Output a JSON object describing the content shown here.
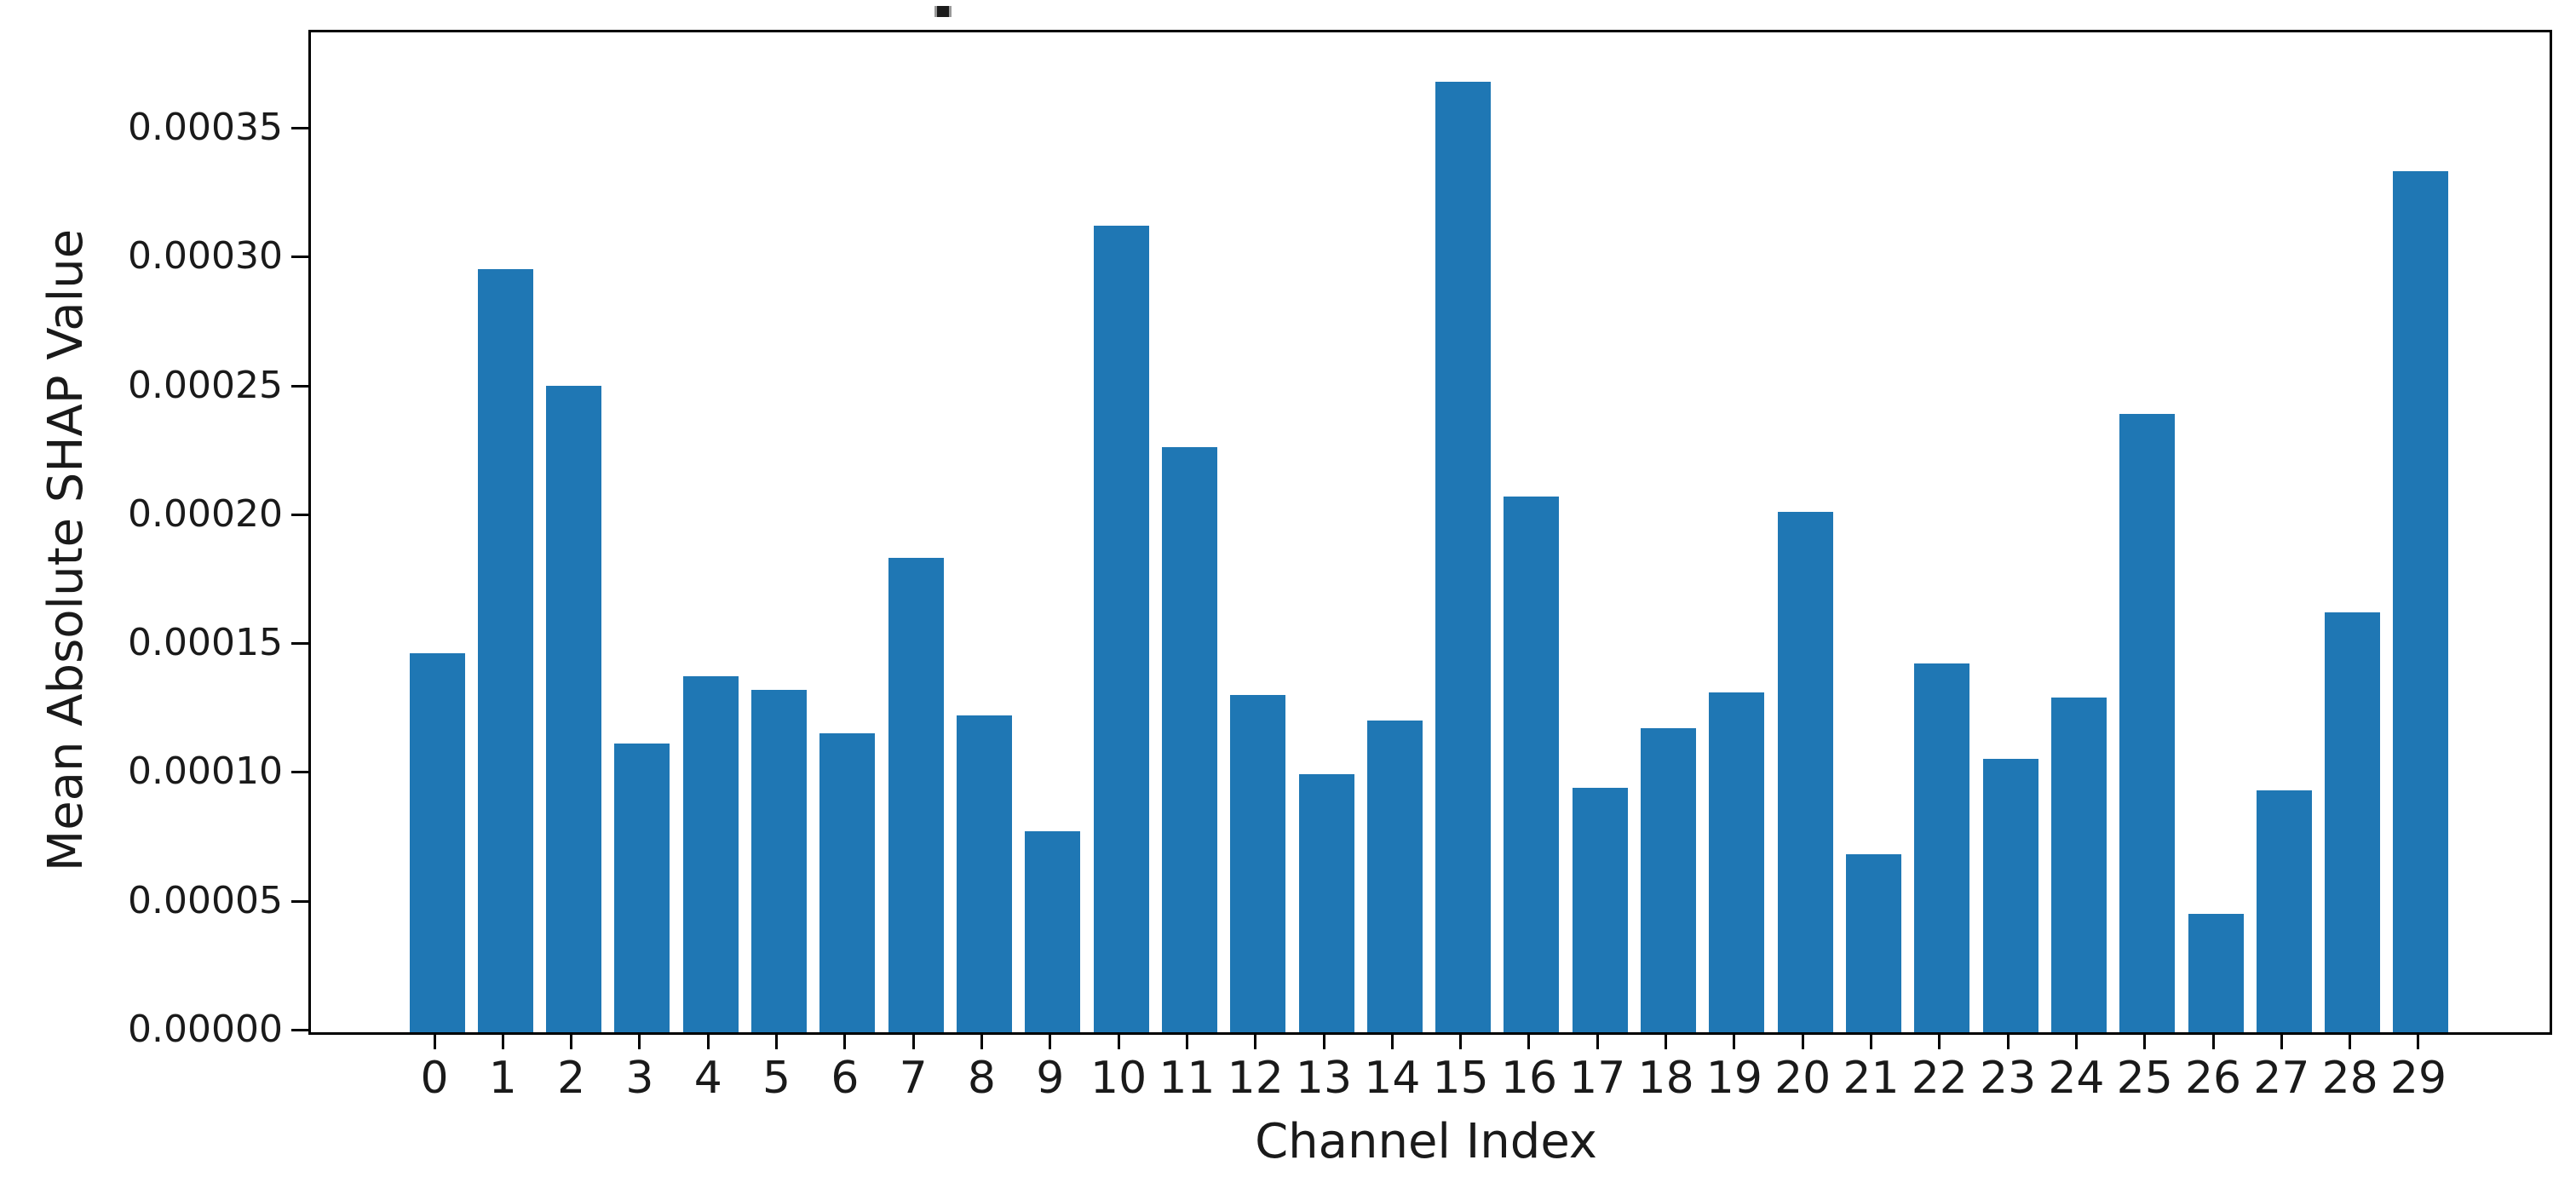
{
  "title": ".",
  "chart_data": {
    "type": "bar",
    "title": ".",
    "xlabel": "Channel Index",
    "ylabel": "Mean Absolute SHAP Value",
    "categories": [
      "0",
      "1",
      "2",
      "3",
      "4",
      "5",
      "6",
      "7",
      "8",
      "9",
      "10",
      "11",
      "12",
      "13",
      "14",
      "15",
      "16",
      "17",
      "18",
      "19",
      "20",
      "21",
      "22",
      "23",
      "24",
      "25",
      "26",
      "27",
      "28",
      "29"
    ],
    "values": [
      0.000147,
      0.000296,
      0.000251,
      0.000112,
      0.000138,
      0.000133,
      0.000116,
      0.000184,
      0.000123,
      7.8e-05,
      0.000313,
      0.000227,
      0.000131,
      0.0001,
      0.000121,
      0.000369,
      0.000208,
      9.5e-05,
      0.000118,
      0.000132,
      0.000202,
      6.9e-05,
      0.000143,
      0.000106,
      0.00013,
      0.00024,
      4.6e-05,
      9.4e-05,
      0.000163,
      0.000334
    ],
    "ylim": [
      0,
      0.000388
    ],
    "yticks": {
      "values": [
        0.0,
        5e-05,
        0.0001,
        0.00015,
        0.0002,
        0.00025,
        0.0003,
        0.00035
      ],
      "labels": [
        "0.00000",
        "0.00005",
        "0.00010",
        "0.00015",
        "0.00020",
        "0.00025",
        "0.00030",
        "0.00035"
      ]
    },
    "bar_color": "#1f77b4",
    "grid": false,
    "legend_position": "none"
  }
}
